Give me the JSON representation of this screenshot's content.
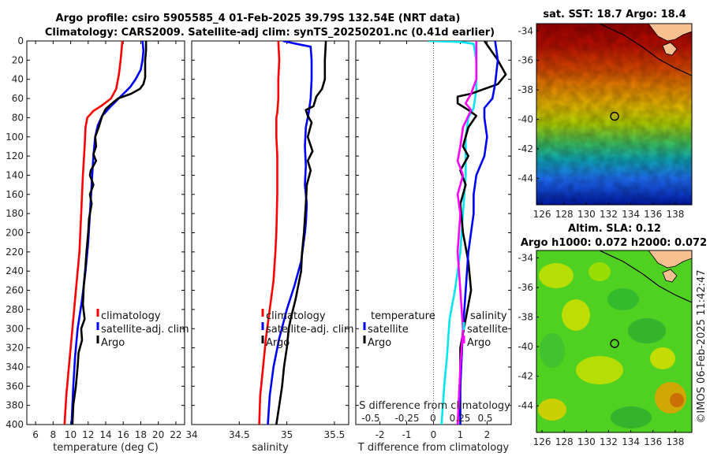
{
  "title_line1": "Argo profile: csiro 5905585_4 01-Feb-2025 39.79S 132.54E (NRT data)",
  "title_line2": "Climatology: CARS2009. Satellite-adj clim: synTS_20250201.nc (0.41d earlier)",
  "depth_ticks": [
    "0",
    "20",
    "40",
    "60",
    "80",
    "100",
    "120",
    "140",
    "160",
    "180",
    "200",
    "220",
    "240",
    "260",
    "280",
    "300",
    "320",
    "340",
    "360",
    "380",
    "400"
  ],
  "copyright": "©IMOS 06-Feb-2025 11:42:47",
  "chart_data": [
    {
      "type": "line",
      "title": "",
      "xlabel": "temperature (deg C)",
      "ylabel": "",
      "xlim": [
        5,
        23
      ],
      "ylim": [
        400,
        0
      ],
      "xticks": [
        6,
        8,
        10,
        12,
        14,
        16,
        18,
        20,
        22
      ],
      "xtick_labels": [
        "6",
        "8",
        "10",
        "12",
        "14",
        "16",
        "18",
        "20",
        "22"
      ],
      "legend": [
        "climatology",
        "satellite-adj. clim",
        "Argo"
      ],
      "series": [
        {
          "name": "climatology",
          "color": "#ff0000",
          "points": [
            [
              15.9,
              0
            ],
            [
              15.8,
              10
            ],
            [
              15.7,
              20
            ],
            [
              15.5,
              35
            ],
            [
              15.2,
              50
            ],
            [
              14.6,
              60
            ],
            [
              13.6,
              67
            ],
            [
              12.6,
              73
            ],
            [
              11.9,
              80
            ],
            [
              11.7,
              90
            ],
            [
              11.6,
              110
            ],
            [
              11.4,
              140
            ],
            [
              11.2,
              180
            ],
            [
              11.0,
              220
            ],
            [
              10.6,
              260
            ],
            [
              10.2,
              300
            ],
            [
              9.8,
              340
            ],
            [
              9.5,
              370
            ],
            [
              9.3,
              400
            ]
          ]
        },
        {
          "name": "satellite-adj. clim",
          "color": "#0000ff",
          "points": [
            [
              18.2,
              0
            ],
            [
              18.3,
              10
            ],
            [
              18.2,
              20
            ],
            [
              18.0,
              30
            ],
            [
              17.4,
              40
            ],
            [
              16.8,
              48
            ],
            [
              15.7,
              58
            ],
            [
              14.6,
              68
            ],
            [
              13.6,
              78
            ],
            [
              13.1,
              88
            ],
            [
              12.8,
              100
            ],
            [
              12.6,
              120
            ],
            [
              12.4,
              150
            ],
            [
              12.2,
              180
            ],
            [
              12.0,
              210
            ],
            [
              11.7,
              240
            ],
            [
              11.3,
              270
            ],
            [
              10.8,
              300
            ],
            [
              10.5,
              330
            ],
            [
              10.3,
              360
            ],
            [
              10.1,
              400
            ]
          ]
        },
        {
          "name": "Argo",
          "color": "#000000",
          "points": [
            [
              18.6,
              0
            ],
            [
              18.6,
              10
            ],
            [
              18.5,
              20
            ],
            [
              18.5,
              38
            ],
            [
              18.3,
              45
            ],
            [
              17.9,
              50
            ],
            [
              16.9,
              55
            ],
            [
              15.4,
              60
            ],
            [
              14.6,
              66
            ],
            [
              14.0,
              71
            ],
            [
              13.6,
              78
            ],
            [
              13.2,
              90
            ],
            [
              12.8,
              100
            ],
            [
              12.9,
              110
            ],
            [
              12.6,
              118
            ],
            [
              12.9,
              125
            ],
            [
              12.3,
              135
            ],
            [
              12.2,
              140
            ],
            [
              12.6,
              150
            ],
            [
              12.2,
              160
            ],
            [
              12.4,
              170
            ],
            [
              12.1,
              185
            ],
            [
              12.0,
              200
            ],
            [
              11.8,
              220
            ],
            [
              11.7,
              235
            ],
            [
              11.5,
              255
            ],
            [
              11.4,
              275
            ],
            [
              11.6,
              290
            ],
            [
              11.2,
              300
            ],
            [
              11.3,
              312
            ],
            [
              10.9,
              325
            ],
            [
              10.8,
              340
            ],
            [
              10.6,
              360
            ],
            [
              10.3,
              380
            ],
            [
              10.2,
              400
            ]
          ]
        }
      ]
    },
    {
      "type": "line",
      "title": "",
      "xlabel": "salinity",
      "ylabel": "",
      "xlim": [
        34.0,
        35.65
      ],
      "ylim": [
        400,
        0
      ],
      "xticks": [
        34.0,
        34.5,
        35.0,
        35.5
      ],
      "xtick_labels": [
        "34",
        "34.5",
        "35",
        "35.5"
      ],
      "legend": [
        "climatology",
        "satellite-adj. clim",
        "Argo"
      ],
      "series": [
        {
          "name": "climatology",
          "color": "#ff0000",
          "points": [
            [
              34.91,
              0
            ],
            [
              34.92,
              20
            ],
            [
              34.91,
              40
            ],
            [
              34.91,
              60
            ],
            [
              34.9,
              75
            ],
            [
              34.89,
              80
            ],
            [
              34.89,
              100
            ],
            [
              34.9,
              120
            ],
            [
              34.9,
              160
            ],
            [
              34.89,
              200
            ],
            [
              34.88,
              220
            ],
            [
              34.86,
              250
            ],
            [
              34.82,
              280
            ],
            [
              34.78,
              310
            ],
            [
              34.75,
              340
            ],
            [
              34.72,
              370
            ],
            [
              34.71,
              400
            ]
          ]
        },
        {
          "name": "satellite-adj. clim",
          "color": "#0000ff",
          "points": [
            [
              34.96,
              0
            ],
            [
              35.1,
              3
            ],
            [
              35.25,
              6
            ],
            [
              35.26,
              20
            ],
            [
              35.26,
              40
            ],
            [
              35.25,
              60
            ],
            [
              35.23,
              75
            ],
            [
              35.2,
              90
            ],
            [
              35.19,
              110
            ],
            [
              35.2,
              130
            ],
            [
              35.19,
              150
            ],
            [
              35.21,
              170
            ],
            [
              35.2,
              190
            ],
            [
              35.19,
              200
            ],
            [
              35.15,
              230
            ],
            [
              35.08,
              255
            ],
            [
              35.0,
              280
            ],
            [
              34.92,
              310
            ],
            [
              34.86,
              340
            ],
            [
              34.82,
              370
            ],
            [
              34.8,
              400
            ]
          ]
        },
        {
          "name": "Argo",
          "color": "#000000",
          "points": [
            [
              35.41,
              0
            ],
            [
              35.4,
              20
            ],
            [
              35.4,
              40
            ],
            [
              35.37,
              50
            ],
            [
              35.31,
              58
            ],
            [
              35.28,
              68
            ],
            [
              35.2,
              72
            ],
            [
              35.22,
              78
            ],
            [
              35.26,
              85
            ],
            [
              35.22,
              100
            ],
            [
              35.27,
              115
            ],
            [
              35.22,
              125
            ],
            [
              35.25,
              135
            ],
            [
              35.21,
              150
            ],
            [
              35.2,
              170
            ],
            [
              35.18,
              200
            ],
            [
              35.16,
              220
            ],
            [
              35.15,
              240
            ],
            [
              35.12,
              255
            ],
            [
              35.09,
              270
            ],
            [
              35.04,
              290
            ],
            [
              35.02,
              300
            ],
            [
              35.0,
              320
            ],
            [
              34.97,
              340
            ],
            [
              34.95,
              360
            ],
            [
              34.92,
              380
            ],
            [
              34.89,
              400
            ]
          ]
        }
      ]
    },
    {
      "type": "line",
      "title": "",
      "xlabel": "T difference from climatology",
      "xlabel2": "S difference from climatology",
      "ylabel": "",
      "xlim": [
        -2.9,
        2.9
      ],
      "ylim": [
        400,
        0
      ],
      "xticks": [
        -2,
        -1,
        0,
        1,
        2
      ],
      "xtick_labels": [
        "-2",
        "-1",
        "0",
        "1",
        "2"
      ],
      "s_ticks": [
        "-0.5",
        "-0.25",
        "0",
        "0.25",
        "0.5"
      ],
      "legend": [
        "temperature",
        "satellite",
        "Argo",
        "salinity",
        "satellite",
        "Argo"
      ],
      "series": [
        {
          "name": "T satellite",
          "color": "#00e5ee",
          "points": [
            [
              -0.2,
              0
            ],
            [
              1.0,
              1
            ],
            [
              1.5,
              3
            ],
            [
              1.6,
              20
            ],
            [
              1.6,
              50
            ],
            [
              1.5,
              70
            ],
            [
              1.3,
              80
            ],
            [
              1.2,
              100
            ],
            [
              1.2,
              140
            ],
            [
              1.1,
              180
            ],
            [
              1.0,
              220
            ],
            [
              0.8,
              260
            ],
            [
              0.6,
              290
            ],
            [
              0.5,
              330
            ],
            [
              0.4,
              360
            ],
            [
              0.3,
              400
            ]
          ]
        },
        {
          "name": "T Argo",
          "color": "#000000",
          "points": [
            [
              1.9,
              0
            ],
            [
              2.4,
              20
            ],
            [
              2.7,
              35
            ],
            [
              2.4,
              45
            ],
            [
              1.4,
              55
            ],
            [
              0.9,
              58
            ],
            [
              0.9,
              65
            ],
            [
              1.3,
              72
            ],
            [
              1.6,
              78
            ],
            [
              1.3,
              90
            ],
            [
              1.1,
              110
            ],
            [
              1.3,
              120
            ],
            [
              1.0,
              135
            ],
            [
              1.2,
              150
            ],
            [
              1.0,
              170
            ],
            [
              1.1,
              200
            ],
            [
              1.3,
              230
            ],
            [
              1.4,
              260
            ],
            [
              1.2,
              290
            ],
            [
              1.0,
              320
            ],
            [
              1.0,
              360
            ],
            [
              0.9,
              400
            ]
          ]
        },
        {
          "name": "S satellite",
          "color": "#0000ff",
          "points": [
            [
              2.3,
              0
            ],
            [
              2.4,
              20
            ],
            [
              2.3,
              45
            ],
            [
              2.2,
              60
            ],
            [
              1.9,
              70
            ],
            [
              1.9,
              80
            ],
            [
              2.0,
              100
            ],
            [
              1.9,
              120
            ],
            [
              1.6,
              140
            ],
            [
              1.5,
              160
            ],
            [
              1.5,
              180
            ],
            [
              1.3,
              220
            ],
            [
              1.2,
              260
            ],
            [
              1.1,
              300
            ],
            [
              1.0,
              360
            ],
            [
              1.0,
              400
            ]
          ]
        },
        {
          "name": "S Argo",
          "color": "#ff00ff",
          "points": [
            [
              1.6,
              0
            ],
            [
              1.6,
              40
            ],
            [
              1.4,
              55
            ],
            [
              1.2,
              65
            ],
            [
              1.4,
              72
            ],
            [
              1.3,
              78
            ],
            [
              1.1,
              90
            ],
            [
              1.0,
              110
            ],
            [
              0.9,
              125
            ],
            [
              1.1,
              140
            ],
            [
              0.9,
              160
            ],
            [
              1.0,
              180
            ],
            [
              0.9,
              220
            ],
            [
              1.0,
              260
            ],
            [
              1.1,
              300
            ],
            [
              1.0,
              340
            ],
            [
              0.9,
              400
            ]
          ]
        }
      ]
    },
    {
      "type": "heatmap",
      "title": "sat. SST: 18.7 Argo: 18.4",
      "xlim": [
        125.5,
        139.5
      ],
      "ylim": [
        -45.8,
        -33.5
      ],
      "xticks": [
        "126",
        "128",
        "130",
        "132",
        "134",
        "136",
        "138"
      ],
      "yticks": [
        "-34",
        "-36",
        "-38",
        "-40",
        "-42",
        "-44"
      ],
      "marker": [
        132.54,
        -39.79
      ]
    },
    {
      "type": "heatmap",
      "title": "Altim. SLA: 0.12",
      "subtitle": "Argo h1000: 0.072 h2000: 0.072",
      "xlim": [
        125.5,
        139.5
      ],
      "ylim": [
        -45.8,
        -33.5
      ],
      "xticks": [
        "126",
        "128",
        "130",
        "132",
        "134",
        "136",
        "138"
      ],
      "yticks": [
        "-34",
        "-36",
        "-38",
        "-40",
        "-42",
        "-44"
      ],
      "marker": [
        132.54,
        -39.79
      ]
    }
  ]
}
